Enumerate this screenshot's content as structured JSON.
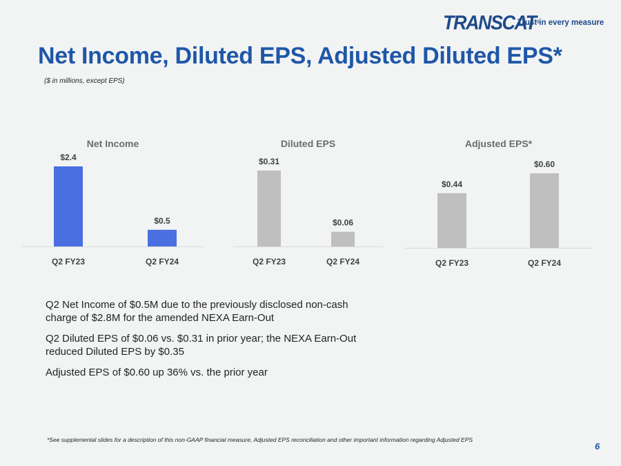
{
  "brand": {
    "logo_text": "TRANSCAT",
    "registered": "®",
    "tagline": "Trust in every measure"
  },
  "header": {
    "title": "Net Income, Diluted EPS, Adjusted Diluted EPS*",
    "subtitle": "($ in millions, except EPS)"
  },
  "colors": {
    "title_blue": "#1f57a8",
    "bar_blue": "#4a6fe0",
    "bar_gray": "#bfbfbf"
  },
  "chart_data": [
    {
      "type": "bar",
      "title": "Net Income",
      "categories": [
        "Q2 FY23",
        "Q2 FY24"
      ],
      "values": [
        2.4,
        0.5
      ],
      "labels": [
        "$2.4",
        "$0.5"
      ],
      "color": "#4a6fe0",
      "ylim": [
        0,
        2.4
      ],
      "grid": false
    },
    {
      "type": "bar",
      "title": "Diluted EPS",
      "categories": [
        "Q2 FY23",
        "Q2 FY24"
      ],
      "values": [
        0.31,
        0.06
      ],
      "labels": [
        "$0.31",
        "$0.06"
      ],
      "color": "#bfbfbf",
      "ylim": [
        0,
        0.31
      ],
      "grid": false
    },
    {
      "type": "bar",
      "title": "Adjusted EPS*",
      "categories": [
        "Q2 FY23",
        "Q2 FY24"
      ],
      "values": [
        0.44,
        0.6
      ],
      "labels": [
        "$0.44",
        "$0.60"
      ],
      "color": "#bfbfbf",
      "ylim": [
        0,
        0.6
      ],
      "grid": false
    }
  ],
  "bullets": [
    "Q2 Net Income of $0.5M due to the previously disclosed non-cash charge of $2.8M for the amended NEXA Earn-Out",
    "Q2 Diluted EPS of $0.06 vs. $0.31 in prior year; the NEXA Earn-Out reduced Diluted EPS by $0.35",
    "Adjusted EPS of $0.60 up 36% vs. the prior year"
  ],
  "footnote": "*See supplemental slides for a description of this non-GAAP financial measure, Adjusted EPS reconciliation and other important information regarding Adjusted EPS",
  "page_number": "6"
}
